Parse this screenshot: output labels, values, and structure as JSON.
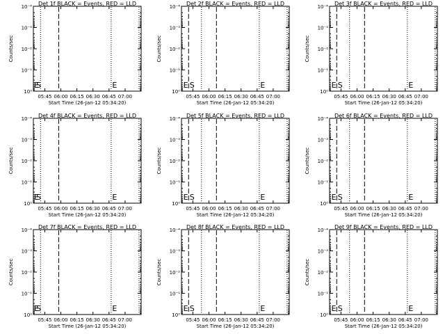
{
  "page": {
    "axis_ylabel": "Counts/sec",
    "axis_xlabel": "Start Time (26-Jan-12 05:34:20)",
    "y_tick_labels": [
      "10⁰",
      "10⁻¹",
      "10⁻²",
      "10⁻³",
      "10⁻⁴"
    ]
  },
  "chart_data": [
    {
      "type": "line",
      "title": "Det 1f BLACK = Events, RED = LLD",
      "xlabel": "Start Time (26-Jan-12 05:34:20)",
      "ylabel": "Counts/sec",
      "y_scale": "log",
      "ylim": [
        1,
        0.0001
      ],
      "xlim": [
        "05:34:20",
        "07:15"
      ],
      "x_ticks": [
        "05:45",
        "06:00",
        "06:15",
        "06:30",
        "06:45",
        "07:00"
      ],
      "series": [],
      "markers": [
        {
          "type": "dotted",
          "x": "05:41"
        },
        {
          "type": "dashed",
          "x": "05:58"
        },
        {
          "type": "dotted",
          "x": "06:47"
        },
        {
          "type": "dotted",
          "x": "07:13"
        }
      ],
      "annotations": [
        {
          "text": "E",
          "x": "05:35"
        },
        {
          "text": "S",
          "x": "05:37"
        },
        {
          "text": "E",
          "x": "06:48"
        }
      ]
    },
    {
      "type": "line",
      "title": "Det 2f BLACK = Events, RED = LLD",
      "xlabel": "Start Time (26-Jan-12 05:34:20)",
      "ylabel": "Counts/sec",
      "y_scale": "log",
      "ylim": [
        1,
        0.0001
      ],
      "xlim": [
        "05:34:20",
        "07:15"
      ],
      "x_ticks": [
        "05:45",
        "06:00",
        "06:15",
        "06:30",
        "06:45",
        "07:00"
      ],
      "series": [],
      "markers": [
        {
          "type": "dashed",
          "x": "05:41"
        },
        {
          "type": "dotted",
          "x": "05:53"
        },
        {
          "type": "dashed",
          "x": "06:07"
        },
        {
          "type": "dotted",
          "x": "06:47"
        },
        {
          "type": "dotted",
          "x": "07:13"
        }
      ],
      "annotations": [
        {
          "text": "E",
          "x": "05:36"
        },
        {
          "text": "S",
          "x": "05:42"
        },
        {
          "text": "E",
          "x": "06:48"
        }
      ]
    },
    {
      "type": "line",
      "title": "Det 3f BLACK = Events, RED = LLD",
      "xlabel": "Start Time (26-Jan-12 05:34:20)",
      "ylabel": "Counts/sec",
      "y_scale": "log",
      "ylim": [
        1,
        0.0001
      ],
      "xlim": [
        "05:34:20",
        "07:15"
      ],
      "x_ticks": [
        "05:45",
        "06:00",
        "06:15",
        "06:30",
        "06:45",
        "07:00"
      ],
      "series": [],
      "markers": [
        {
          "type": "dashed",
          "x": "05:41"
        },
        {
          "type": "dotted",
          "x": "05:53"
        },
        {
          "type": "dashed",
          "x": "06:07"
        },
        {
          "type": "dotted",
          "x": "06:47"
        },
        {
          "type": "dotted",
          "x": "07:13"
        }
      ],
      "annotations": [
        {
          "text": "E",
          "x": "05:36"
        },
        {
          "text": "S",
          "x": "05:42"
        },
        {
          "text": "E",
          "x": "06:48"
        }
      ]
    },
    {
      "type": "line",
      "title": "Det 4f BLACK = Events, RED = LLD",
      "xlabel": "Start Time (26-Jan-12 05:34:20)",
      "ylabel": "Counts/sec",
      "y_scale": "log",
      "ylim": [
        1,
        0.0001
      ],
      "xlim": [
        "05:34:20",
        "07:15"
      ],
      "x_ticks": [
        "05:45",
        "06:00",
        "06:15",
        "06:30",
        "06:45",
        "07:00"
      ],
      "series": [],
      "markers": [
        {
          "type": "dotted",
          "x": "05:41"
        },
        {
          "type": "dashed",
          "x": "05:58"
        },
        {
          "type": "dotted",
          "x": "06:47"
        },
        {
          "type": "dotted",
          "x": "07:13"
        }
      ],
      "annotations": [
        {
          "text": "E",
          "x": "05:35"
        },
        {
          "text": "S",
          "x": "05:37"
        },
        {
          "text": "E",
          "x": "06:48"
        }
      ]
    },
    {
      "type": "line",
      "title": "Det 5f BLACK = Events, RED = LLD",
      "xlabel": "Start Time (26-Jan-12 05:34:20)",
      "ylabel": "Counts/sec",
      "y_scale": "log",
      "ylim": [
        1,
        0.0001
      ],
      "xlim": [
        "05:34:20",
        "07:15"
      ],
      "x_ticks": [
        "05:45",
        "06:00",
        "06:15",
        "06:30",
        "06:45",
        "07:00"
      ],
      "series": [],
      "markers": [
        {
          "type": "dashed",
          "x": "05:41"
        },
        {
          "type": "dotted",
          "x": "05:53"
        },
        {
          "type": "dashed",
          "x": "06:07"
        },
        {
          "type": "dotted",
          "x": "06:47"
        },
        {
          "type": "dotted",
          "x": "07:13"
        }
      ],
      "annotations": [
        {
          "text": "E",
          "x": "05:36"
        },
        {
          "text": "S",
          "x": "05:42"
        },
        {
          "text": "E",
          "x": "06:48"
        }
      ]
    },
    {
      "type": "line",
      "title": "Det 6f BLACK = Events, RED = LLD",
      "xlabel": "Start Time (26-Jan-12 05:34:20)",
      "ylabel": "Counts/sec",
      "y_scale": "log",
      "ylim": [
        1,
        0.0001
      ],
      "xlim": [
        "05:34:20",
        "07:15"
      ],
      "x_ticks": [
        "05:45",
        "06:00",
        "06:15",
        "06:30",
        "06:45",
        "07:00"
      ],
      "series": [],
      "markers": [
        {
          "type": "dashed",
          "x": "05:41"
        },
        {
          "type": "dotted",
          "x": "05:53"
        },
        {
          "type": "dashed",
          "x": "06:07"
        },
        {
          "type": "dotted",
          "x": "06:47"
        },
        {
          "type": "dotted",
          "x": "07:13"
        }
      ],
      "annotations": [
        {
          "text": "E",
          "x": "05:36"
        },
        {
          "text": "S",
          "x": "05:42"
        },
        {
          "text": "E",
          "x": "06:48"
        }
      ]
    },
    {
      "type": "line",
      "title": "Det 7f BLACK = Events, RED = LLD",
      "xlabel": "Start Time (26-Jan-12 05:34:20)",
      "ylabel": "Counts/sec",
      "y_scale": "log",
      "ylim": [
        1,
        0.0001
      ],
      "xlim": [
        "05:34:20",
        "07:15"
      ],
      "x_ticks": [
        "05:45",
        "06:00",
        "06:15",
        "06:30",
        "06:45",
        "07:00"
      ],
      "series": [],
      "markers": [
        {
          "type": "dotted",
          "x": "05:41"
        },
        {
          "type": "dashed",
          "x": "05:58"
        },
        {
          "type": "dotted",
          "x": "06:47"
        },
        {
          "type": "dotted",
          "x": "07:13"
        }
      ],
      "annotations": [
        {
          "text": "E",
          "x": "05:35"
        },
        {
          "text": "S",
          "x": "05:37"
        },
        {
          "text": "E",
          "x": "06:48"
        }
      ]
    },
    {
      "type": "line",
      "title": "Det 8f BLACK = Events, RED = LLD",
      "xlabel": "Start Time (26-Jan-12 05:34:20)",
      "ylabel": "Counts/sec",
      "y_scale": "log",
      "ylim": [
        1,
        0.0001
      ],
      "xlim": [
        "05:34:20",
        "07:15"
      ],
      "x_ticks": [
        "05:45",
        "06:00",
        "06:15",
        "06:30",
        "06:45",
        "07:00"
      ],
      "series": [],
      "markers": [
        {
          "type": "dashed",
          "x": "05:41"
        },
        {
          "type": "dotted",
          "x": "05:53"
        },
        {
          "type": "dashed",
          "x": "06:07"
        },
        {
          "type": "dotted",
          "x": "06:47"
        },
        {
          "type": "dotted",
          "x": "07:13"
        }
      ],
      "annotations": [
        {
          "text": "E",
          "x": "05:36"
        },
        {
          "text": "S",
          "x": "05:42"
        },
        {
          "text": "E",
          "x": "06:48"
        }
      ]
    },
    {
      "type": "line",
      "title": "Det 9f BLACK = Events, RED = LLD",
      "xlabel": "Start Time (26-Jan-12 05:34:20)",
      "ylabel": "Counts/sec",
      "y_scale": "log",
      "ylim": [
        1,
        0.0001
      ],
      "xlim": [
        "05:34:20",
        "07:15"
      ],
      "x_ticks": [
        "05:45",
        "06:00",
        "06:15",
        "06:30",
        "06:45",
        "07:00"
      ],
      "series": [],
      "markers": [
        {
          "type": "dashed",
          "x": "05:41"
        },
        {
          "type": "dotted",
          "x": "05:53"
        },
        {
          "type": "dashed",
          "x": "06:07"
        },
        {
          "type": "dotted",
          "x": "06:47"
        },
        {
          "type": "dotted",
          "x": "07:13"
        }
      ],
      "annotations": [
        {
          "text": "E",
          "x": "05:36"
        },
        {
          "text": "S",
          "x": "05:42"
        },
        {
          "text": "E",
          "x": "06:48"
        }
      ]
    }
  ]
}
